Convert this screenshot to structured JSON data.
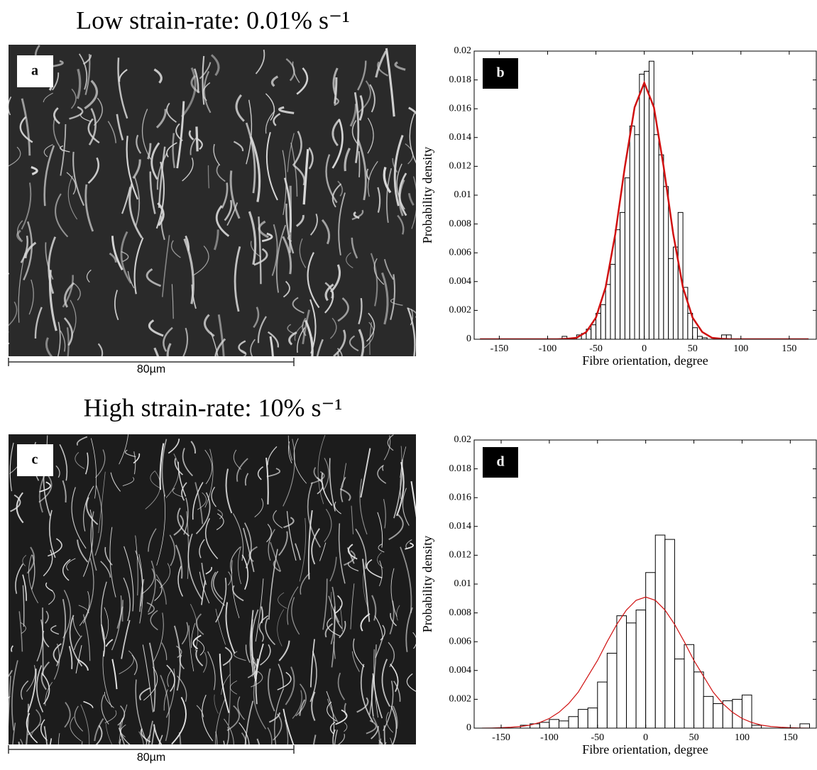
{
  "row_titles": [
    "Low strain-rate: 0.01% s⁻¹",
    "High strain-rate: 10% s⁻¹"
  ],
  "images": [
    {
      "label": "a",
      "scale_bar": "80µm"
    },
    {
      "label": "c",
      "scale_bar": "80µm"
    }
  ],
  "chart_data": [
    {
      "type": "histogram",
      "panel_label": "b",
      "xlabel": "Fibre orientation, degree",
      "ylabel": "Probability density",
      "bins": [
        -85,
        -80,
        -75,
        -70,
        -65,
        -60,
        -55,
        -50,
        -45,
        -40,
        -35,
        -30,
        -25,
        -20,
        -15,
        -10,
        -5,
        0,
        5,
        10,
        15,
        20,
        25,
        30,
        35,
        40,
        45,
        50,
        55,
        60,
        65,
        70,
        75,
        80,
        85,
        90
      ],
      "counts": [
        0.0002,
        0,
        0.0001,
        0.0003,
        0.0004,
        0.0007,
        0.001,
        0.0018,
        0.0024,
        0.0038,
        0.0052,
        0.0076,
        0.0088,
        0.0112,
        0.0148,
        0.0142,
        0.0184,
        0.0186,
        0.0193,
        0.0142,
        0.0128,
        0.0106,
        0.0056,
        0.0064,
        0.0088,
        0.0036,
        0.0018,
        0.0008,
        0.0002,
        0.0001,
        0,
        0,
        0,
        0.0003,
        0.0003
      ],
      "color": "#ffffff",
      "fit": {
        "x": [
          -170,
          -160,
          -150,
          -140,
          -130,
          -120,
          -110,
          -100,
          -90,
          -80,
          -70,
          -60,
          -50,
          -40,
          -30,
          -20,
          -10,
          0,
          10,
          20,
          30,
          40,
          50,
          60,
          70,
          80,
          90,
          100,
          110,
          120,
          130,
          140,
          150,
          160,
          170
        ],
        "values": [
          0,
          0,
          0,
          0,
          0,
          0,
          0,
          0,
          0,
          3e-05,
          0.0001,
          0.0005,
          0.0015,
          0.0036,
          0.0073,
          0.012,
          0.0161,
          0.0178,
          0.0161,
          0.012,
          0.0073,
          0.0036,
          0.0015,
          0.0005,
          0.0001,
          3e-05,
          0,
          0,
          0,
          0,
          0,
          0,
          0,
          0,
          0
        ],
        "color": "#d01010",
        "width": 2.5
      },
      "xlim": [
        -176,
        178
      ],
      "ylim": [
        0,
        0.02
      ],
      "xticks": [
        -150,
        -100,
        -50,
        0,
        50,
        100,
        150
      ],
      "yticks": [
        0,
        0.002,
        0.004,
        0.006,
        0.008,
        0.01,
        0.012,
        0.014,
        0.016,
        0.018,
        0.02
      ]
    },
    {
      "type": "histogram",
      "panel_label": "d",
      "xlabel": "Fibre orientation, degree",
      "ylabel": "Probability density",
      "bins": [
        -130,
        -120,
        -110,
        -100,
        -90,
        -80,
        -70,
        -60,
        -50,
        -40,
        -30,
        -20,
        -10,
        0,
        10,
        20,
        30,
        40,
        50,
        60,
        70,
        80,
        90,
        100,
        110,
        120,
        130,
        140,
        150,
        160,
        170
      ],
      "counts": [
        0.0002,
        0.0003,
        0.0004,
        0.0006,
        0.0005,
        0.0008,
        0.0013,
        0.0014,
        0.0032,
        0.0052,
        0.0078,
        0.0073,
        0.0082,
        0.0108,
        0.0134,
        0.0131,
        0.0048,
        0.0058,
        0.0039,
        0.0022,
        0.0017,
        0.0019,
        0.002,
        0.0023,
        0.0002,
        0,
        0,
        0,
        0,
        0.0003
      ],
      "color": "#ffffff",
      "fit": {
        "x": [
          -170,
          -160,
          -150,
          -140,
          -130,
          -120,
          -110,
          -100,
          -90,
          -80,
          -70,
          -60,
          -50,
          -40,
          -30,
          -20,
          -10,
          0,
          10,
          20,
          30,
          40,
          50,
          60,
          70,
          80,
          90,
          100,
          110,
          120,
          130,
          140,
          150,
          160,
          170
        ],
        "values": [
          0,
          1e-05,
          3e-05,
          6e-05,
          0.00011,
          0.00021,
          0.00039,
          0.00067,
          0.0011,
          0.0017,
          0.0025,
          0.0036,
          0.0047,
          0.006,
          0.0072,
          0.0082,
          0.00887,
          0.0091,
          0.00887,
          0.0082,
          0.0072,
          0.006,
          0.0047,
          0.0036,
          0.0025,
          0.0017,
          0.0011,
          0.00067,
          0.00039,
          0.00021,
          0.00011,
          6e-05,
          3e-05,
          1e-05,
          0
        ],
        "color": "#d01010",
        "width": 1.2
      },
      "xlim": [
        -178,
        177
      ],
      "ylim": [
        0,
        0.02
      ],
      "xticks": [
        -150,
        -100,
        -50,
        0,
        50,
        100,
        150
      ],
      "yticks": [
        0,
        0.002,
        0.004,
        0.006,
        0.008,
        0.01,
        0.012,
        0.014,
        0.016,
        0.018,
        0.02
      ]
    }
  ]
}
